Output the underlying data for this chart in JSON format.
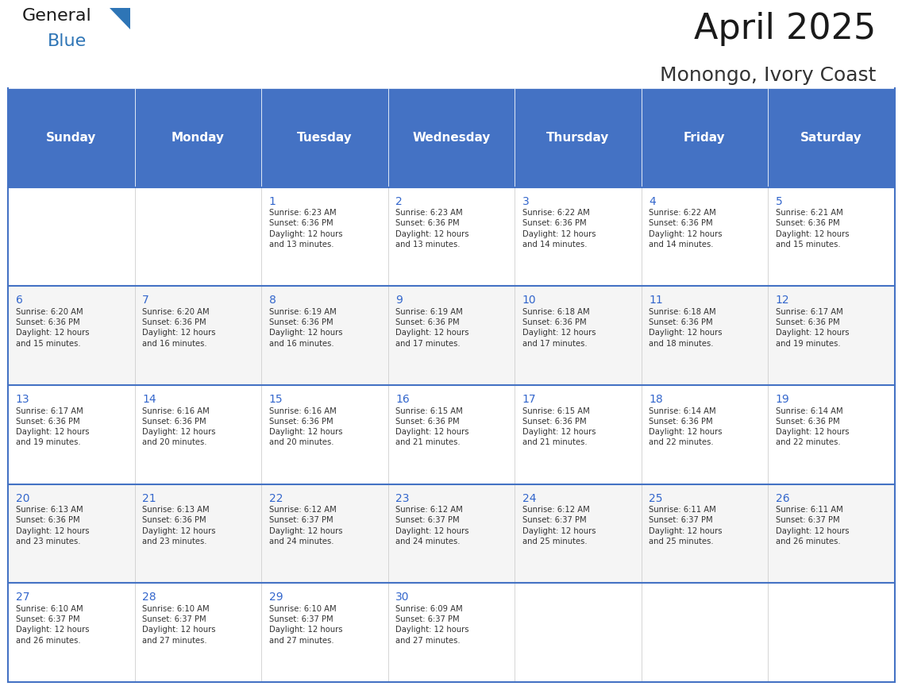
{
  "title": "April 2025",
  "subtitle": "Monongo, Ivory Coast",
  "days_of_week": [
    "Sunday",
    "Monday",
    "Tuesday",
    "Wednesday",
    "Thursday",
    "Friday",
    "Saturday"
  ],
  "header_bg": "#4472C4",
  "header_text": "#FFFFFF",
  "cell_bg_light": "#F2F2F2",
  "cell_bg_white": "#FFFFFF",
  "day_number_color": "#3366CC",
  "text_color": "#333333",
  "line_color": "#4472C4",
  "general_blue_text": "#3C3C3C",
  "general_blue_color": "#2E75B6",
  "weeks": [
    [
      {
        "day": null,
        "info": null
      },
      {
        "day": null,
        "info": null
      },
      {
        "day": 1,
        "info": "Sunrise: 6:23 AM\nSunset: 6:36 PM\nDaylight: 12 hours\nand 13 minutes."
      },
      {
        "day": 2,
        "info": "Sunrise: 6:23 AM\nSunset: 6:36 PM\nDaylight: 12 hours\nand 13 minutes."
      },
      {
        "day": 3,
        "info": "Sunrise: 6:22 AM\nSunset: 6:36 PM\nDaylight: 12 hours\nand 14 minutes."
      },
      {
        "day": 4,
        "info": "Sunrise: 6:22 AM\nSunset: 6:36 PM\nDaylight: 12 hours\nand 14 minutes."
      },
      {
        "day": 5,
        "info": "Sunrise: 6:21 AM\nSunset: 6:36 PM\nDaylight: 12 hours\nand 15 minutes."
      }
    ],
    [
      {
        "day": 6,
        "info": "Sunrise: 6:20 AM\nSunset: 6:36 PM\nDaylight: 12 hours\nand 15 minutes."
      },
      {
        "day": 7,
        "info": "Sunrise: 6:20 AM\nSunset: 6:36 PM\nDaylight: 12 hours\nand 16 minutes."
      },
      {
        "day": 8,
        "info": "Sunrise: 6:19 AM\nSunset: 6:36 PM\nDaylight: 12 hours\nand 16 minutes."
      },
      {
        "day": 9,
        "info": "Sunrise: 6:19 AM\nSunset: 6:36 PM\nDaylight: 12 hours\nand 17 minutes."
      },
      {
        "day": 10,
        "info": "Sunrise: 6:18 AM\nSunset: 6:36 PM\nDaylight: 12 hours\nand 17 minutes."
      },
      {
        "day": 11,
        "info": "Sunrise: 6:18 AM\nSunset: 6:36 PM\nDaylight: 12 hours\nand 18 minutes."
      },
      {
        "day": 12,
        "info": "Sunrise: 6:17 AM\nSunset: 6:36 PM\nDaylight: 12 hours\nand 19 minutes."
      }
    ],
    [
      {
        "day": 13,
        "info": "Sunrise: 6:17 AM\nSunset: 6:36 PM\nDaylight: 12 hours\nand 19 minutes."
      },
      {
        "day": 14,
        "info": "Sunrise: 6:16 AM\nSunset: 6:36 PM\nDaylight: 12 hours\nand 20 minutes."
      },
      {
        "day": 15,
        "info": "Sunrise: 6:16 AM\nSunset: 6:36 PM\nDaylight: 12 hours\nand 20 minutes."
      },
      {
        "day": 16,
        "info": "Sunrise: 6:15 AM\nSunset: 6:36 PM\nDaylight: 12 hours\nand 21 minutes."
      },
      {
        "day": 17,
        "info": "Sunrise: 6:15 AM\nSunset: 6:36 PM\nDaylight: 12 hours\nand 21 minutes."
      },
      {
        "day": 18,
        "info": "Sunrise: 6:14 AM\nSunset: 6:36 PM\nDaylight: 12 hours\nand 22 minutes."
      },
      {
        "day": 19,
        "info": "Sunrise: 6:14 AM\nSunset: 6:36 PM\nDaylight: 12 hours\nand 22 minutes."
      }
    ],
    [
      {
        "day": 20,
        "info": "Sunrise: 6:13 AM\nSunset: 6:36 PM\nDaylight: 12 hours\nand 23 minutes."
      },
      {
        "day": 21,
        "info": "Sunrise: 6:13 AM\nSunset: 6:36 PM\nDaylight: 12 hours\nand 23 minutes."
      },
      {
        "day": 22,
        "info": "Sunrise: 6:12 AM\nSunset: 6:37 PM\nDaylight: 12 hours\nand 24 minutes."
      },
      {
        "day": 23,
        "info": "Sunrise: 6:12 AM\nSunset: 6:37 PM\nDaylight: 12 hours\nand 24 minutes."
      },
      {
        "day": 24,
        "info": "Sunrise: 6:12 AM\nSunset: 6:37 PM\nDaylight: 12 hours\nand 25 minutes."
      },
      {
        "day": 25,
        "info": "Sunrise: 6:11 AM\nSunset: 6:37 PM\nDaylight: 12 hours\nand 25 minutes."
      },
      {
        "day": 26,
        "info": "Sunrise: 6:11 AM\nSunset: 6:37 PM\nDaylight: 12 hours\nand 26 minutes."
      }
    ],
    [
      {
        "day": 27,
        "info": "Sunrise: 6:10 AM\nSunset: 6:37 PM\nDaylight: 12 hours\nand 26 minutes."
      },
      {
        "day": 28,
        "info": "Sunrise: 6:10 AM\nSunset: 6:37 PM\nDaylight: 12 hours\nand 27 minutes."
      },
      {
        "day": 29,
        "info": "Sunrise: 6:10 AM\nSunset: 6:37 PM\nDaylight: 12 hours\nand 27 minutes."
      },
      {
        "day": 30,
        "info": "Sunrise: 6:09 AM\nSunset: 6:37 PM\nDaylight: 12 hours\nand 27 minutes."
      },
      {
        "day": null,
        "info": null
      },
      {
        "day": null,
        "info": null
      },
      {
        "day": null,
        "info": null
      }
    ]
  ]
}
